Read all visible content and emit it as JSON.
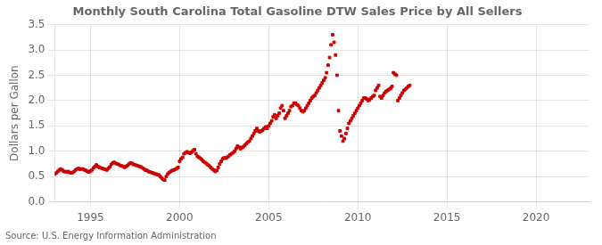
{
  "chart_data": {
    "type": "scatter",
    "title": "Monthly South Carolina Total Gasoline DTW Sales Price by All Sellers",
    "ylabel": "Dollars per Gallon",
    "source": "Source: U.S. Energy Information Administration",
    "color": "#CC0000",
    "marker": "square",
    "grid": true,
    "xlim": [
      1993.0,
      2023.0
    ],
    "ylim": [
      0.0,
      3.5
    ],
    "xticks": [
      1995,
      2000,
      2005,
      2010,
      2015,
      2020
    ],
    "yticks": [
      {
        "value": 0.0,
        "label": "0.0"
      },
      0.5,
      {
        "value": 1.0,
        "label": "1.0"
      },
      1.5,
      {
        "value": 2.0,
        "label": "2.0"
      },
      2.5,
      {
        "value": 3.0,
        "label": "3.0"
      },
      3.5
    ],
    "x": [
      1993,
      1993.0833,
      1993.1667,
      1993.25,
      1993.3333,
      1993.4167,
      1993.5,
      1993.5833,
      1993.6667,
      1993.75,
      1993.8333,
      1993.9167,
      1994,
      1994.0833,
      1994.1667,
      1994.25,
      1994.3333,
      1994.4167,
      1994.5,
      1994.5833,
      1994.6667,
      1994.75,
      1994.8333,
      1994.9167,
      1995,
      1995.0833,
      1995.1667,
      1995.25,
      1995.3333,
      1995.4167,
      1995.5,
      1995.5833,
      1995.6667,
      1995.75,
      1995.8333,
      1995.9167,
      1996,
      1996.0833,
      1996.1667,
      1996.25,
      1996.3333,
      1996.4167,
      1996.5,
      1996.5833,
      1996.6667,
      1996.75,
      1996.8333,
      1996.9167,
      1997,
      1997.0833,
      1997.1667,
      1997.25,
      1997.3333,
      1997.4167,
      1997.5,
      1997.5833,
      1997.6667,
      1997.75,
      1997.8333,
      1997.9167,
      1998,
      1998.0833,
      1998.1667,
      1998.25,
      1998.3333,
      1998.4167,
      1998.5,
      1998.5833,
      1998.6667,
      1998.75,
      1998.8333,
      1998.9167,
      1999,
      1999.0833,
      1999.1667,
      1999.25,
      1999.3333,
      1999.4167,
      1999.5,
      1999.5833,
      1999.6667,
      1999.75,
      1999.8333,
      1999.9167,
      2000,
      2000.0833,
      2000.1667,
      2000.25,
      2000.3333,
      2000.4167,
      2000.5,
      2000.5833,
      2000.6667,
      2000.75,
      2000.8333,
      2000.9167,
      2001,
      2001.0833,
      2001.1667,
      2001.25,
      2001.3333,
      2001.4167,
      2001.5,
      2001.5833,
      2001.6667,
      2001.75,
      2001.8333,
      2001.9167,
      2002,
      2002.0833,
      2002.1667,
      2002.25,
      2002.3333,
      2002.4167,
      2002.5,
      2002.5833,
      2002.6667,
      2002.75,
      2002.8333,
      2002.9167,
      2003,
      2003.0833,
      2003.1667,
      2003.25,
      2003.3333,
      2003.4167,
      2003.5,
      2003.5833,
      2003.6667,
      2003.75,
      2003.8333,
      2003.9167,
      2004,
      2004.0833,
      2004.1667,
      2004.25,
      2004.3333,
      2004.4167,
      2004.5,
      2004.5833,
      2004.6667,
      2004.75,
      2004.8333,
      2004.9167,
      2005,
      2005.0833,
      2005.1667,
      2005.25,
      2005.3333,
      2005.4167,
      2005.5,
      2005.5833,
      2005.6667,
      2005.75,
      2005.8333,
      2005.9167,
      2006,
      2006.0833,
      2006.1667,
      2006.25,
      2006.3333,
      2006.4167,
      2006.5,
      2006.5833,
      2006.6667,
      2006.75,
      2006.8333,
      2006.9167,
      2007,
      2007.0833,
      2007.1667,
      2007.25,
      2007.3333,
      2007.4167,
      2007.5,
      2007.5833,
      2007.6667,
      2007.75,
      2007.8333,
      2007.9167,
      2008,
      2008.0833,
      2008.1667,
      2008.25,
      2008.3333,
      2008.4167,
      2008.5,
      2008.5833,
      2008.6667,
      2008.75,
      2008.8333,
      2008.9167,
      2009,
      2009.0833,
      2009.1667,
      2009.25,
      2009.3333,
      2009.4167,
      2009.5,
      2009.5833,
      2009.6667,
      2009.75,
      2009.8333,
      2009.9167,
      2010,
      2010.0833,
      2010.1667,
      2010.25,
      2010.3333,
      2010.4167,
      2010.5,
      2010.5833,
      2010.6667,
      2010.75,
      2010.8333,
      2010.9167,
      2011,
      2011.0833,
      2011.1667,
      2011.25,
      2011.3333,
      2011.4167,
      2011.5,
      2011.5833,
      2011.6667,
      2011.75,
      2011.8333,
      2011.9167,
      2012,
      2012.0833,
      2012.1667,
      2012.25,
      2012.3333,
      2012.4167,
      2012.5,
      2012.5833,
      2012.6667,
      2012.75,
      2012.8333,
      2012.9167
    ],
    "values": [
      0.55,
      0.57,
      0.6,
      0.63,
      0.65,
      0.63,
      0.6,
      0.6,
      0.59,
      0.6,
      0.58,
      0.57,
      0.58,
      0.6,
      0.63,
      0.65,
      0.66,
      0.64,
      0.65,
      0.65,
      0.63,
      0.62,
      0.6,
      0.59,
      0.61,
      0.63,
      0.67,
      0.7,
      0.73,
      0.7,
      0.68,
      0.67,
      0.66,
      0.65,
      0.64,
      0.63,
      0.66,
      0.69,
      0.74,
      0.77,
      0.78,
      0.76,
      0.75,
      0.74,
      0.72,
      0.71,
      0.7,
      0.68,
      0.7,
      0.72,
      0.75,
      0.77,
      0.76,
      0.74,
      0.73,
      0.72,
      0.71,
      0.7,
      0.69,
      0.67,
      0.65,
      0.63,
      0.62,
      0.6,
      0.59,
      0.58,
      0.57,
      0.56,
      0.55,
      0.54,
      0.53,
      0.5,
      0.47,
      0.44,
      0.43,
      0.5,
      0.55,
      0.58,
      0.6,
      0.62,
      0.63,
      0.64,
      0.66,
      0.68,
      0.8,
      0.85,
      0.88,
      0.95,
      0.97,
      0.99,
      0.97,
      0.96,
      0.98,
      1.01,
      1.03,
      0.95,
      0.9,
      0.88,
      0.86,
      0.83,
      0.8,
      0.78,
      0.76,
      0.73,
      0.71,
      0.68,
      0.65,
      0.63,
      0.6,
      0.62,
      0.68,
      0.75,
      0.8,
      0.85,
      0.87,
      0.86,
      0.88,
      0.9,
      0.93,
      0.95,
      0.97,
      1.0,
      1.05,
      1.1,
      1.08,
      1.05,
      1.07,
      1.09,
      1.12,
      1.15,
      1.18,
      1.2,
      1.25,
      1.3,
      1.35,
      1.4,
      1.45,
      1.4,
      1.38,
      1.4,
      1.42,
      1.45,
      1.48,
      1.45,
      1.5,
      1.55,
      1.6,
      1.68,
      1.72,
      1.65,
      1.7,
      1.75,
      1.85,
      1.9,
      1.8,
      1.65,
      1.7,
      1.75,
      1.8,
      1.88,
      1.9,
      1.95,
      1.95,
      1.92,
      1.9,
      1.85,
      1.8,
      1.78,
      1.8,
      1.85,
      1.9,
      1.95,
      2.0,
      2.05,
      2.08,
      2.1,
      2.15,
      2.2,
      2.25,
      2.3,
      2.35,
      2.4,
      2.45,
      2.55,
      2.7,
      2.85,
      3.1,
      3.3,
      3.15,
      2.9,
      2.5,
      1.8,
      1.4,
      1.3,
      1.2,
      1.25,
      1.35,
      1.45,
      1.55,
      1.6,
      1.65,
      1.7,
      1.75,
      1.8,
      1.85,
      1.9,
      1.95,
      2.0,
      2.05,
      2.05,
      2.03,
      2.0,
      2.02,
      2.05,
      2.08,
      2.1,
      2.2,
      2.25,
      2.3,
      2.08,
      2.05,
      2.1,
      2.15,
      2.18,
      2.2,
      2.22,
      2.24,
      2.28,
      2.55,
      2.52,
      2.5,
      2.0,
      2.05,
      2.1,
      2.15,
      2.2,
      2.22,
      2.25,
      2.28,
      2.3
    ]
  }
}
